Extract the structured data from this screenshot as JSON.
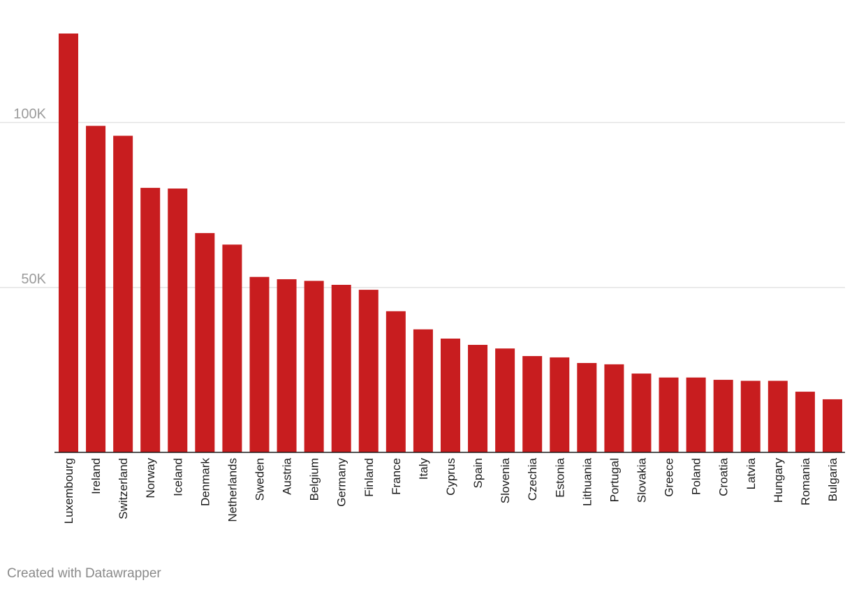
{
  "chart_data": {
    "type": "bar",
    "title": "",
    "xlabel": "",
    "ylabel": "",
    "ylim": [
      0,
      127000
    ],
    "yticks": [
      {
        "value": 50000,
        "label": "50K"
      },
      {
        "value": 100000,
        "label": "100K"
      }
    ],
    "grid": true,
    "bar_color": "#c81d1f",
    "categories": [
      "Luxembourg",
      "Ireland",
      "Switzerland",
      "Norway",
      "Iceland",
      "Denmark",
      "Netherlands",
      "Sweden",
      "Austria",
      "Belgium",
      "Germany",
      "Finland",
      "France",
      "Italy",
      "Cyprus",
      "Spain",
      "Slovenia",
      "Czechia",
      "Estonia",
      "Lithuania",
      "Portugal",
      "Slovakia",
      "Greece",
      "Poland",
      "Croatia",
      "Latvia",
      "Hungary",
      "Romania",
      "Bulgaria"
    ],
    "values": [
      127000,
      99000,
      96000,
      80200,
      80000,
      66500,
      63000,
      53200,
      52500,
      52000,
      50800,
      49300,
      42800,
      37300,
      34500,
      32600,
      31500,
      29200,
      28800,
      27100,
      26700,
      23900,
      22700,
      22700,
      22000,
      21700,
      21700,
      18400,
      16100
    ]
  },
  "footer": {
    "credit": "Created with Datawrapper"
  }
}
